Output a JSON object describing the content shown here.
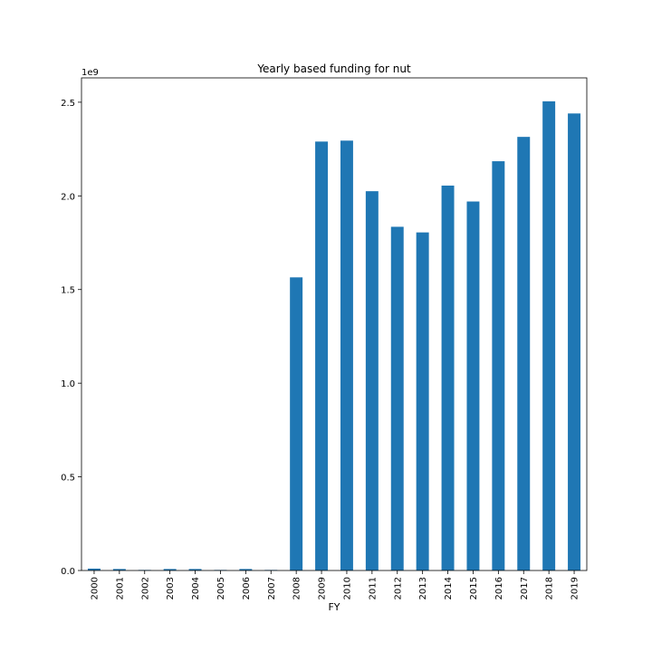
{
  "chart_data": {
    "type": "bar",
    "title": "Yearly based funding for nut",
    "xlabel": "FY",
    "ylabel": "",
    "y_offset_text": "1e9",
    "categories": [
      "2000",
      "2001",
      "2002",
      "2003",
      "2004",
      "2005",
      "2006",
      "2007",
      "2008",
      "2009",
      "2010",
      "2011",
      "2012",
      "2013",
      "2014",
      "2015",
      "2016",
      "2017",
      "2018",
      "2019"
    ],
    "values": [
      10000000,
      8000000,
      3000000,
      8000000,
      8000000,
      3000000,
      8000000,
      3000000,
      1565000000,
      2290000000,
      2295000000,
      2025000000,
      1835000000,
      1805000000,
      2055000000,
      1970000000,
      2185000000,
      2315000000,
      2505000000,
      2440000000
    ],
    "ylim": [
      0,
      2630000000
    ],
    "yticks": [
      0,
      500000000,
      1000000000,
      1500000000,
      2000000000,
      2500000000
    ],
    "ytick_labels": [
      "0.0",
      "0.5",
      "1.0",
      "1.5",
      "2.0",
      "2.5"
    ],
    "grid": false,
    "bar_color": "#1f77b4"
  }
}
